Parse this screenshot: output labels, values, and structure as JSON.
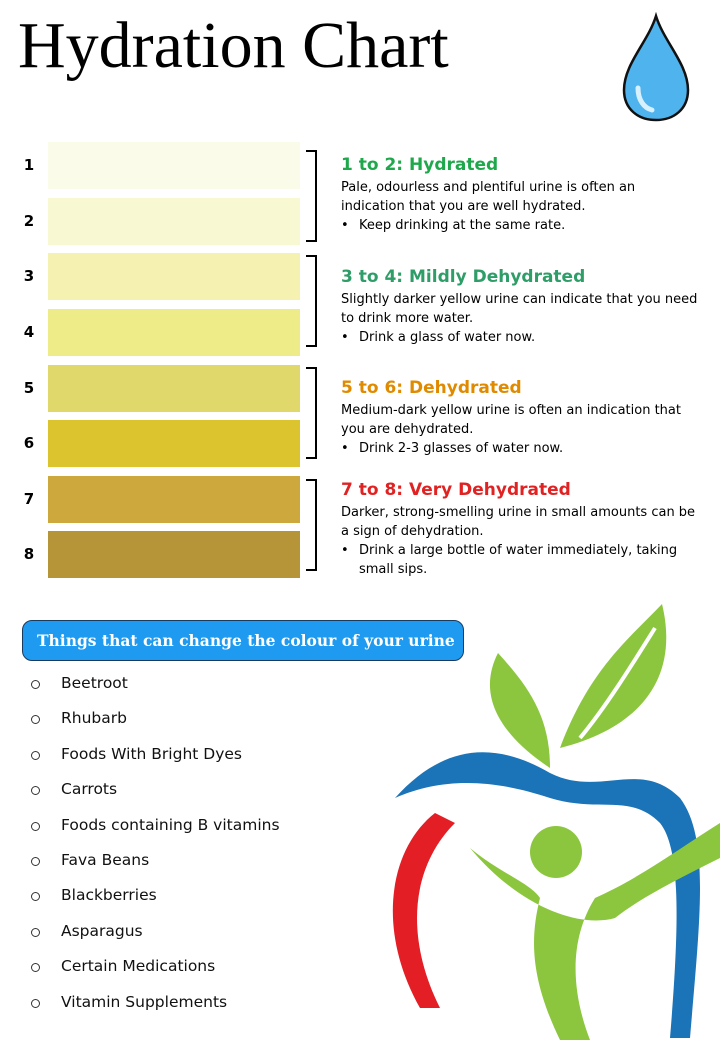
{
  "header": {
    "title": "Hydration Chart"
  },
  "levels": [
    {
      "label": "1",
      "color": "#fbfbea"
    },
    {
      "label": "2",
      "color": "#f8f8d3"
    },
    {
      "label": "3",
      "color": "#f5f2b1"
    },
    {
      "label": "4",
      "color": "#eeec88"
    },
    {
      "label": "5",
      "color": "#e1d86b"
    },
    {
      "label": "6",
      "color": "#dcc42f"
    },
    {
      "label": "7",
      "color": "#cda93d"
    },
    {
      "label": "8",
      "color": "#b59537"
    }
  ],
  "groups": [
    {
      "heading": "1 to 2: Hydrated",
      "color": "#1ea84b",
      "description": "Pale, odourless and plentiful urine is often an indication that you are well hydrated.",
      "bullet": "Keep drinking at the same rate."
    },
    {
      "heading": "3 to 4: Mildly Dehydrated",
      "color": "#2e9d68",
      "description": "Slightly darker yellow urine can indicate that you need to drink more water.",
      "bullet": "Drink a glass of water now."
    },
    {
      "heading": "5 to 6: Dehydrated",
      "color": "#e08a00",
      "description": "Medium-dark yellow urine is often an indication that you are dehydrated.",
      "bullet": "Drink 2-3 glasses of water now."
    },
    {
      "heading": "7 to 8: Very Dehydrated",
      "color": "#e02222",
      "description": "Darker, strong-smelling urine in small amounts can be a sign of dehydration.",
      "bullet": "Drink a large bottle of water immediately, taking small sips."
    }
  ],
  "panel": {
    "title": "Things that can change the colour of your urine",
    "items": [
      "Beetroot",
      "Rhubarb",
      "Foods With Bright Dyes",
      "Carrots",
      "Foods containing B vitamins",
      "Fava Beans",
      "Blackberries",
      "Asparagus",
      "Certain Medications",
      "Vitamin Supplements"
    ]
  }
}
